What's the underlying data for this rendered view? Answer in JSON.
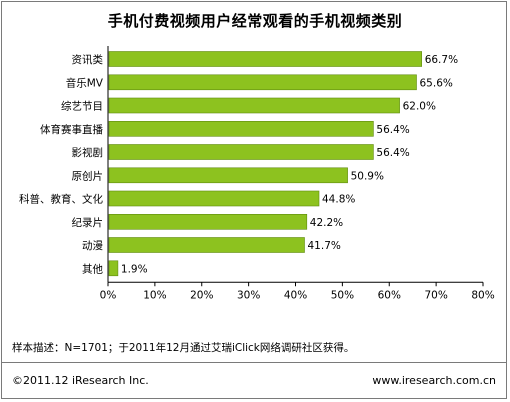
{
  "header": {
    "title": "手机付费视频用户经常观看的手机视频类别"
  },
  "chart_data": {
    "type": "bar",
    "orientation": "horizontal",
    "categories": [
      "资讯类",
      "音乐MV",
      "综艺节目",
      "体育赛事直播",
      "影视剧",
      "原创片",
      "科普、教育、文化",
      "纪录片",
      "动漫",
      "其他"
    ],
    "values": [
      66.7,
      65.6,
      62.0,
      56.4,
      56.4,
      50.9,
      44.8,
      42.2,
      41.7,
      1.9
    ],
    "value_labels": [
      "66.7%",
      "65.6%",
      "62.0%",
      "56.4%",
      "56.4%",
      "50.9%",
      "44.8%",
      "42.2%",
      "41.7%",
      "1.9%"
    ],
    "xlim": [
      0,
      80
    ],
    "xticks": [
      0,
      10,
      20,
      30,
      40,
      50,
      60,
      70,
      80
    ],
    "xtick_labels": [
      "0%",
      "10%",
      "20%",
      "30%",
      "40%",
      "50%",
      "60%",
      "70%",
      "80%"
    ],
    "bar_color": "#8dc21f",
    "bar_edge_color": "#5f8a0f",
    "grid": false
  },
  "footer": {
    "note": "样本描述：N=1701；于2011年12月通过艾瑞iClick网络调研社区获得。",
    "copyright": "©2011.12 iResearch Inc.",
    "site": "www.iresearch.com.cn"
  }
}
